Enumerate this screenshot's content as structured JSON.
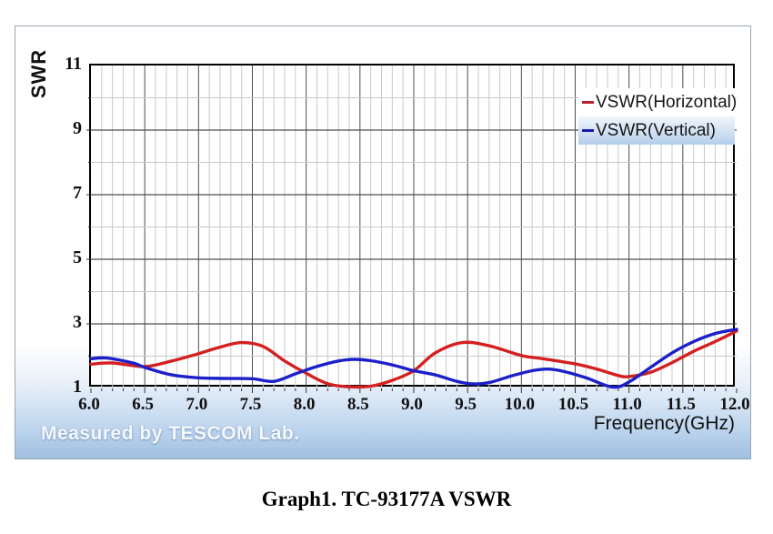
{
  "panel": {
    "y_axis_title": "SWR",
    "x_axis_title": "Frequency(GHz)",
    "watermark": "Measured by TESCOM Lab."
  },
  "caption": "Graph1. TC-93177A VSWR",
  "colors": {
    "horizontal_series": "#d42020",
    "vertical_series": "#1c20c8",
    "grid_major": "#4d4d4d",
    "grid_minor": "#c9c9c9",
    "plot_border": "#000000",
    "panel_bottom_blue": "#9fc0e0"
  },
  "chart_data": {
    "type": "line",
    "title": "",
    "xlabel": "Frequency(GHz)",
    "ylabel": "SWR",
    "xlim": [
      6.0,
      12.0
    ],
    "ylim": [
      1,
      11
    ],
    "grid": true,
    "legend_position": "top-right-inside",
    "x_tick_labels": [
      "6.0",
      "6.5",
      "7.0",
      "7.5",
      "8.0",
      "8.5",
      "9.0",
      "9.5",
      "10.0",
      "10.5",
      "11.0",
      "11.5",
      "12.0"
    ],
    "x_major_step": 0.5,
    "x_minor_step": 0.1,
    "y_tick_labels": [
      "11",
      "9",
      "7",
      "5",
      "3",
      "1"
    ],
    "y_major_ticks": [
      11,
      9,
      7,
      5,
      3,
      1
    ],
    "y_minor_ticks": [
      2,
      4,
      6,
      8,
      10
    ],
    "series": [
      {
        "name": "VSWR(Horizontal)",
        "color": "#d42020",
        "points": [
          [
            6.0,
            1.75
          ],
          [
            6.2,
            1.79
          ],
          [
            6.5,
            1.68
          ],
          [
            6.75,
            1.85
          ],
          [
            7.0,
            2.08
          ],
          [
            7.2,
            2.28
          ],
          [
            7.4,
            2.42
          ],
          [
            7.6,
            2.3
          ],
          [
            7.8,
            1.85
          ],
          [
            8.0,
            1.47
          ],
          [
            8.2,
            1.15
          ],
          [
            8.4,
            1.05
          ],
          [
            8.6,
            1.07
          ],
          [
            8.8,
            1.25
          ],
          [
            9.0,
            1.55
          ],
          [
            9.2,
            2.1
          ],
          [
            9.45,
            2.42
          ],
          [
            9.7,
            2.32
          ],
          [
            10.0,
            2.02
          ],
          [
            10.2,
            1.92
          ],
          [
            10.5,
            1.76
          ],
          [
            10.7,
            1.6
          ],
          [
            10.9,
            1.4
          ],
          [
            11.0,
            1.37
          ],
          [
            11.2,
            1.5
          ],
          [
            11.4,
            1.8
          ],
          [
            11.6,
            2.15
          ],
          [
            11.8,
            2.45
          ],
          [
            12.0,
            2.78
          ]
        ]
      },
      {
        "name": "VSWR(Vertical)",
        "color": "#1c20c8",
        "points": [
          [
            6.0,
            1.92
          ],
          [
            6.15,
            1.94
          ],
          [
            6.4,
            1.78
          ],
          [
            6.5,
            1.65
          ],
          [
            6.75,
            1.42
          ],
          [
            7.0,
            1.33
          ],
          [
            7.25,
            1.31
          ],
          [
            7.5,
            1.3
          ],
          [
            7.7,
            1.22
          ],
          [
            7.9,
            1.45
          ],
          [
            8.1,
            1.68
          ],
          [
            8.3,
            1.85
          ],
          [
            8.45,
            1.9
          ],
          [
            8.6,
            1.86
          ],
          [
            8.8,
            1.73
          ],
          [
            9.0,
            1.55
          ],
          [
            9.2,
            1.42
          ],
          [
            9.4,
            1.22
          ],
          [
            9.55,
            1.14
          ],
          [
            9.7,
            1.18
          ],
          [
            9.9,
            1.38
          ],
          [
            10.1,
            1.55
          ],
          [
            10.25,
            1.6
          ],
          [
            10.4,
            1.52
          ],
          [
            10.6,
            1.33
          ],
          [
            10.85,
            1.04
          ],
          [
            11.0,
            1.2
          ],
          [
            11.2,
            1.65
          ],
          [
            11.4,
            2.1
          ],
          [
            11.6,
            2.45
          ],
          [
            11.8,
            2.7
          ],
          [
            12.0,
            2.83
          ]
        ]
      }
    ]
  },
  "legend": {
    "entries": [
      {
        "label": "VSWR(Horizontal)",
        "color": "#b5222b"
      },
      {
        "label": "VSWR(Vertical)",
        "color": "#1a1ab0"
      }
    ]
  }
}
